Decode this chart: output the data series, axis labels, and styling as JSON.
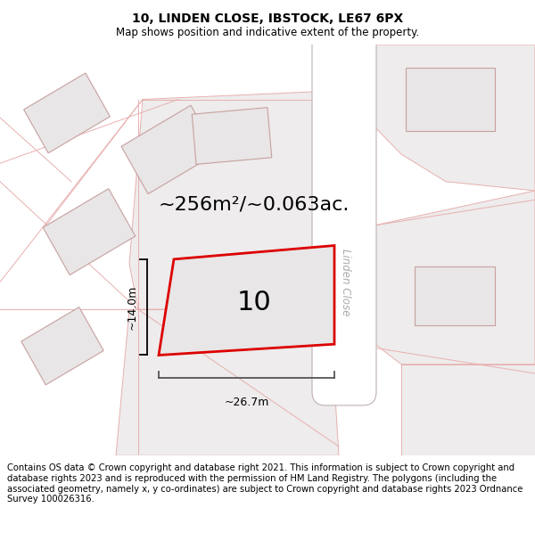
{
  "title": "10, LINDEN CLOSE, IBSTOCK, LE67 6PX",
  "subtitle": "Map shows position and indicative extent of the property.",
  "area_text": "~256m²/~0.063ac.",
  "plot_number": "10",
  "dim_width": "~26.7m",
  "dim_height": "~14.0m",
  "road_label": "Linden Close",
  "footer": "Contains OS data © Crown copyright and database right 2021. This information is subject to Crown copyright and database rights 2023 and is reproduced with the permission of HM Land Registry. The polygons (including the associated geometry, namely x, y co-ordinates) are subject to Crown copyright and database rights 2023 Ordnance Survey 100026316.",
  "map_bg": "#f8f6f6",
  "building_fill": "#e8e6e6",
  "building_edge": "#c8a0a0",
  "plot_fill": "#e8e6e6",
  "plot_edge": "#dd0000",
  "road_fill": "#ffffff",
  "road_edge": "#c0b0b0",
  "parcel_edge": "#e8b0b0",
  "title_fontsize": 10,
  "subtitle_fontsize": 8.5,
  "footer_fontsize": 7.2,
  "area_fontsize": 16,
  "plot_label_fontsize": 22,
  "dim_fontsize": 9
}
